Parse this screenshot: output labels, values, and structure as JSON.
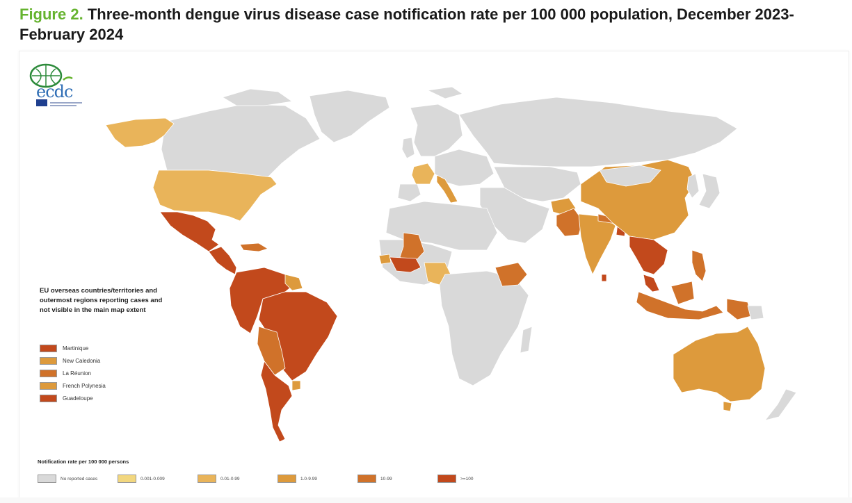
{
  "title": {
    "figure_label": "Figure 2.",
    "text": "Three-month dengue virus disease case notification rate per 100 000 population, December 2023-February 2024"
  },
  "logo": {
    "name": "ecdc"
  },
  "overseas": {
    "title": "EU overseas countries/territories and outermost regions reporting cases and not visible in the main map extent",
    "items": [
      {
        "label": "Martinique",
        "color": "#c2491c"
      },
      {
        "label": "New Caledonia",
        "color": "#dd9a3c"
      },
      {
        "label": "La Réunion",
        "color": "#d0722a"
      },
      {
        "label": "French Polynesia",
        "color": "#dd9a3c"
      },
      {
        "label": "Guadeloupe",
        "color": "#c2491c"
      }
    ]
  },
  "rate_legend": {
    "title": "Notification rate per 100 000 persons",
    "classes": [
      {
        "label": "No reported cases",
        "color": "#d9d9d9"
      },
      {
        "label": "0.001-0.009",
        "color": "#f2d77f"
      },
      {
        "label": "0.01-0.99",
        "color": "#e9b45a"
      },
      {
        "label": "1.0-9.99",
        "color": "#dd9a3c"
      },
      {
        "label": "10-99",
        "color": "#d0722a"
      },
      {
        "label": ">=100",
        "color": "#c2491c"
      }
    ]
  },
  "map_regions": [
    {
      "name": "Alaska",
      "class": "0.01-0.99"
    },
    {
      "name": "United States",
      "class": "0.01-0.99"
    },
    {
      "name": "Mexico",
      "class": ">=100"
    },
    {
      "name": "Central America",
      "class": ">=100"
    },
    {
      "name": "Caribbean",
      "class": "10-99"
    },
    {
      "name": "South America",
      "class": ">=100"
    },
    {
      "name": "Brazil",
      "class": ">=100"
    },
    {
      "name": "Bolivia",
      "class": "10-99"
    },
    {
      "name": "Paraguay",
      "class": "10-99"
    },
    {
      "name": "Argentina",
      "class": ">=100"
    },
    {
      "name": "Uruguay",
      "class": "1.0-9.99"
    },
    {
      "name": "Guiana",
      "class": "1.0-9.99"
    },
    {
      "name": "France",
      "class": "0.01-0.99"
    },
    {
      "name": "Italy",
      "class": "1.0-9.99"
    },
    {
      "name": "Mali",
      "class": "10-99"
    },
    {
      "name": "Burkina Faso",
      "class": ">=100"
    },
    {
      "name": "Senegal",
      "class": "1.0-9.99"
    },
    {
      "name": "Nigeria",
      "class": "0.001-0.009"
    },
    {
      "name": "Ethiopia",
      "class": "10-99"
    },
    {
      "name": "Afghanistan",
      "class": "1.0-9.99"
    },
    {
      "name": "Pakistan",
      "class": "10-99"
    },
    {
      "name": "India",
      "class": "1.0-9.99"
    },
    {
      "name": "Nepal",
      "class": "10-99"
    },
    {
      "name": "Bangladesh",
      "class": ">=100"
    },
    {
      "name": "Sri Lanka",
      "class": ">=100"
    },
    {
      "name": "China",
      "class": "1.0-9.99"
    },
    {
      "name": "Indochina",
      "class": ">=100"
    },
    {
      "name": "Philippines",
      "class": "10-99"
    },
    {
      "name": "Malaysia",
      "class": ">=100"
    },
    {
      "name": "Indonesia",
      "class": "10-99"
    },
    {
      "name": "Papua New Guinea",
      "class": "10-99"
    },
    {
      "name": "Australia",
      "class": "1.0-9.99"
    }
  ]
}
